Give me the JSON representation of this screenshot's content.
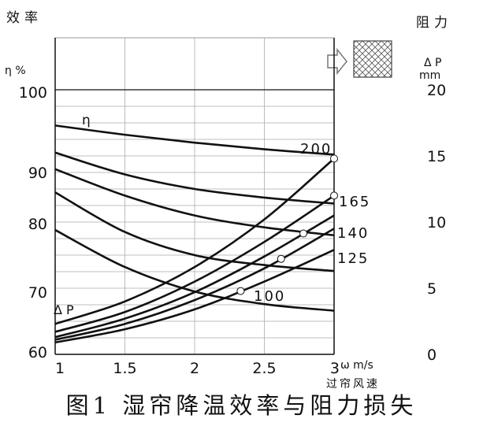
{
  "caption": "图1  湿帘降温效率与阻力损失",
  "chart_data": {
    "type": "line",
    "left_axis_title": "效率",
    "left_axis_unit": "η %",
    "right_axis_title": "阻力",
    "right_axis_unit_1": "Δ P",
    "right_axis_unit_2": "mm",
    "x_axis_title": "过帘风速",
    "x_unit": "ω m/s",
    "x_ticks": [
      "1",
      "1.5",
      "2",
      "2.5",
      "3"
    ],
    "y_left_ticks": [
      "100",
      "90",
      "80",
      "70",
      "60"
    ],
    "y_right_ticks": [
      "20",
      "15",
      "10",
      "5",
      "0"
    ],
    "xlim": [
      1,
      3
    ],
    "y_left_lim": [
      60,
      100
    ],
    "y_right_lim": [
      0,
      20
    ],
    "eta_label": "η",
    "dp_label": "Δ P",
    "flow_icon": "arrow-right-icon",
    "pad_icon": "crosshatch-pad-icon",
    "efficiency_series": [
      {
        "name": "200",
        "x": [
          1,
          1.5,
          2,
          2.5,
          3
        ],
        "y": [
          94.6,
          93.2,
          92.0,
          91.0,
          90.2
        ]
      },
      {
        "name": "165",
        "x": [
          1,
          1.5,
          2,
          2.5,
          3
        ],
        "y": [
          90.5,
          87.2,
          85.0,
          83.7,
          82.8
        ]
      },
      {
        "name": "140",
        "x": [
          1,
          1.5,
          2,
          2.5,
          3
        ],
        "y": [
          88.0,
          84.0,
          81.0,
          79.2,
          78.0
        ]
      },
      {
        "name": "125",
        "x": [
          1,
          1.5,
          2,
          2.5,
          3
        ],
        "y": [
          84.5,
          78.5,
          75.0,
          73.5,
          72.6
        ]
      },
      {
        "name": "100",
        "x": [
          1,
          1.5,
          2,
          2.5,
          3
        ],
        "y": [
          78.8,
          73.2,
          69.5,
          67.6,
          66.6
        ]
      }
    ],
    "pressure_series": [
      {
        "name": "200",
        "x": [
          1,
          1.5,
          2,
          2.5,
          3
        ],
        "y": [
          2.3,
          4.0,
          6.6,
          10.2,
          14.8
        ]
      },
      {
        "name": "165",
        "x": [
          1,
          1.5,
          2,
          2.5,
          3
        ],
        "y": [
          1.7,
          3.2,
          5.5,
          8.5,
          12.0
        ]
      },
      {
        "name": "140",
        "x": [
          1,
          1.5,
          2,
          2.5,
          3
        ],
        "y": [
          1.3,
          2.7,
          4.7,
          7.4,
          10.5
        ]
      },
      {
        "name": "125",
        "x": [
          1,
          1.5,
          2,
          2.5,
          3
        ],
        "y": [
          1.1,
          2.3,
          4.1,
          6.5,
          9.5
        ]
      },
      {
        "name": "100",
        "x": [
          1,
          1.5,
          2,
          2.5,
          3
        ],
        "y": [
          0.9,
          1.9,
          3.4,
          5.5,
          7.9
        ]
      }
    ],
    "curve_labels": [
      "200",
      "165",
      "140",
      "125",
      "100"
    ],
    "grid": true
  }
}
